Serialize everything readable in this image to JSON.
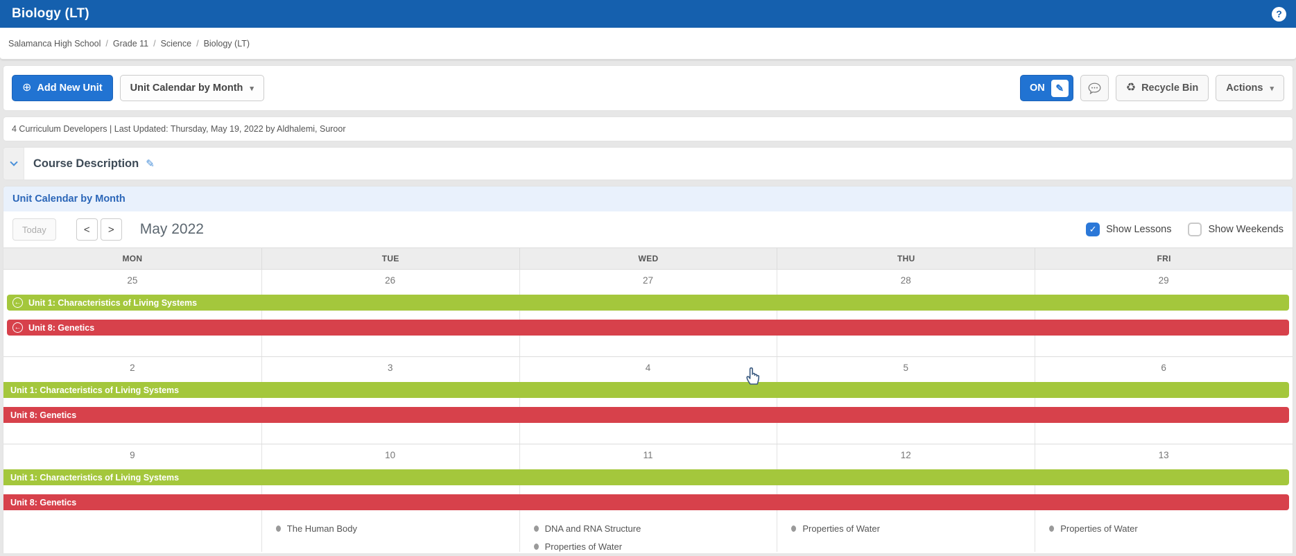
{
  "app": {
    "title": "Biology (LT)"
  },
  "breadcrumb": {
    "separator": "/",
    "items": [
      "Salamanca High School",
      "Grade 11",
      "Science",
      "Biology (LT)"
    ]
  },
  "toolbar": {
    "add_new_unit": "Add New Unit",
    "view_selector": "Unit Calendar by Month",
    "on_toggle": "ON",
    "recycle_bin": "Recycle Bin",
    "actions": "Actions"
  },
  "status_bar": {
    "text": "4 Curriculum Developers | Last Updated: Thursday, May 19, 2022 by Aldhalemi, Suroor"
  },
  "course_description": {
    "title": "Course Description"
  },
  "calendar": {
    "section_title": "Unit Calendar by Month",
    "toolbar": {
      "today": "Today",
      "month_title": "May 2022",
      "show_lessons": {
        "label": "Show Lessons",
        "checked": true
      },
      "show_weekends": {
        "label": "Show Weekends",
        "checked": false
      }
    },
    "day_headers": [
      "MON",
      "TUE",
      "WED",
      "THU",
      "FRI"
    ],
    "weeks": [
      {
        "dates": [
          "25",
          "26",
          "27",
          "28",
          "29"
        ],
        "units": [
          {
            "label": "Unit 1: Characteristics of Living Systems",
            "color": "#a4c73c",
            "continues_from_previous": true
          },
          {
            "label": "Unit 8: Genetics",
            "color": "#d7414b",
            "continues_from_previous": true
          }
        ],
        "lessons": [
          [],
          [],
          [],
          [],
          []
        ]
      },
      {
        "dates": [
          "2",
          "3",
          "4",
          "5",
          "6"
        ],
        "units": [
          {
            "label": "Unit 1: Characteristics of Living Systems",
            "color": "#a4c73c",
            "continues_from_previous": false
          },
          {
            "label": "Unit 8: Genetics",
            "color": "#d7414b",
            "continues_from_previous": false
          }
        ],
        "lessons": [
          [],
          [],
          [],
          [],
          []
        ]
      },
      {
        "dates": [
          "9",
          "10",
          "11",
          "12",
          "13"
        ],
        "units": [
          {
            "label": "Unit 1: Characteristics of Living Systems",
            "color": "#a4c73c",
            "continues_from_previous": false
          },
          {
            "label": "Unit 8: Genetics",
            "color": "#d7414b",
            "continues_from_previous": false
          }
        ],
        "lessons": [
          [],
          [
            "The Human Body"
          ],
          [
            "DNA and RNA Structure",
            "Properties of Water"
          ],
          [
            "Properties of Water"
          ],
          [
            "Properties of Water"
          ]
        ]
      }
    ]
  },
  "colors": {
    "header_blue": "#1560ae",
    "primary_blue": "#2173d2",
    "section_link_blue": "#2b66b8",
    "unit_green": "#a4c73c",
    "unit_red": "#d7414b"
  }
}
